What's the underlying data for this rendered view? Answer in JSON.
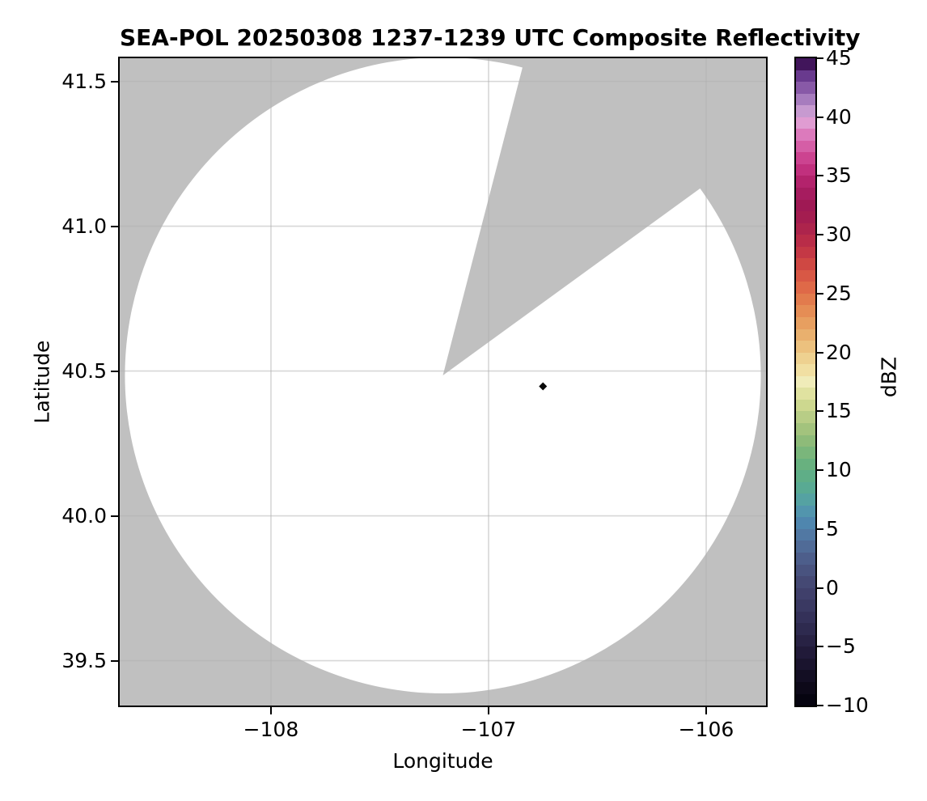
{
  "title": "SEA-POL 20250308 1237-1239 UTC Composite Reflectivity",
  "chart_data": {
    "type": "radar_ppi_map",
    "title": "SEA-POL 20250308 1237-1239 UTC Composite Reflectivity",
    "xlabel": "Longitude",
    "ylabel": "Latitude",
    "xlim": [
      -108.695,
      -105.725
    ],
    "ylim": [
      39.345,
      41.58
    ],
    "xticks": [
      {
        "value": -108,
        "label": "−108"
      },
      {
        "value": -107,
        "label": "−107"
      },
      {
        "value": -106,
        "label": "−106"
      }
    ],
    "yticks": [
      {
        "value": 39.5,
        "label": "39.5"
      },
      {
        "value": 40.0,
        "label": "40.0"
      },
      {
        "value": 40.5,
        "label": "40.5"
      },
      {
        "value": 41.0,
        "label": "41.0"
      },
      {
        "value": 41.5,
        "label": "41.5"
      }
    ],
    "grid": true,
    "grid_color": "rgba(176,176,176,0.5)",
    "no_data_color": "#c0c0c0",
    "coverage_color": "#ffffff",
    "radar": {
      "center_lon": -107.21,
      "center_lat": 40.485,
      "radius_deg_lon": 1.461,
      "radius_deg_lat": 1.098,
      "blocked_sector_azimuth_deg": [
        14.5,
        54.0
      ]
    },
    "echo_points": [
      {
        "lon": -106.75,
        "lat": 40.447,
        "dbz": -10,
        "color": "#0a0a0a",
        "marker": "diamond"
      }
    ],
    "colorbar": {
      "label": "dBZ",
      "min": -10,
      "max": 45,
      "band_step": 1,
      "ticks": [
        {
          "value": -10,
          "label": "−10"
        },
        {
          "value": -5,
          "label": "−5"
        },
        {
          "value": 0,
          "label": "0"
        },
        {
          "value": 5,
          "label": "5"
        },
        {
          "value": 10,
          "label": "10"
        },
        {
          "value": 15,
          "label": "15"
        },
        {
          "value": 20,
          "label": "20"
        },
        {
          "value": 25,
          "label": "25"
        },
        {
          "value": 30,
          "label": "30"
        },
        {
          "value": 35,
          "label": "35"
        },
        {
          "value": 40,
          "label": "40"
        },
        {
          "value": 45,
          "label": "45"
        }
      ],
      "band_colors": [
        "#060410",
        "#0d0919",
        "#130e23",
        "#1a142e",
        "#211a39",
        "#282244",
        "#2e2a4f",
        "#343159",
        "#3a3962",
        "#40406b",
        "#454974",
        "#49537f",
        "#4d5e8b",
        "#506b97",
        "#5178a3",
        "#4f86ae",
        "#5295ad",
        "#55a2a2",
        "#59aa93",
        "#5fae87",
        "#68b17f",
        "#7ab67b",
        "#8ebb79",
        "#a3c37d",
        "#b8cd86",
        "#cdd88f",
        "#e0e2a0",
        "#f0ecb9",
        "#f1dfa2",
        "#eed190",
        "#ecc17e",
        "#e9b06e",
        "#e79f60",
        "#e58d55",
        "#e27b4d",
        "#df6948",
        "#d85845",
        "#cf4843",
        "#c43845",
        "#b92c48",
        "#ad244c",
        "#a41d50",
        "#9f1954",
        "#a61c5f",
        "#b3236c",
        "#c1307e",
        "#cc4390",
        "#d55ea6",
        "#dc7abc",
        "#e09cd2",
        "#c79ad0",
        "#a77cbe",
        "#8859a7",
        "#693a8e",
        "#41155b"
      ]
    }
  }
}
